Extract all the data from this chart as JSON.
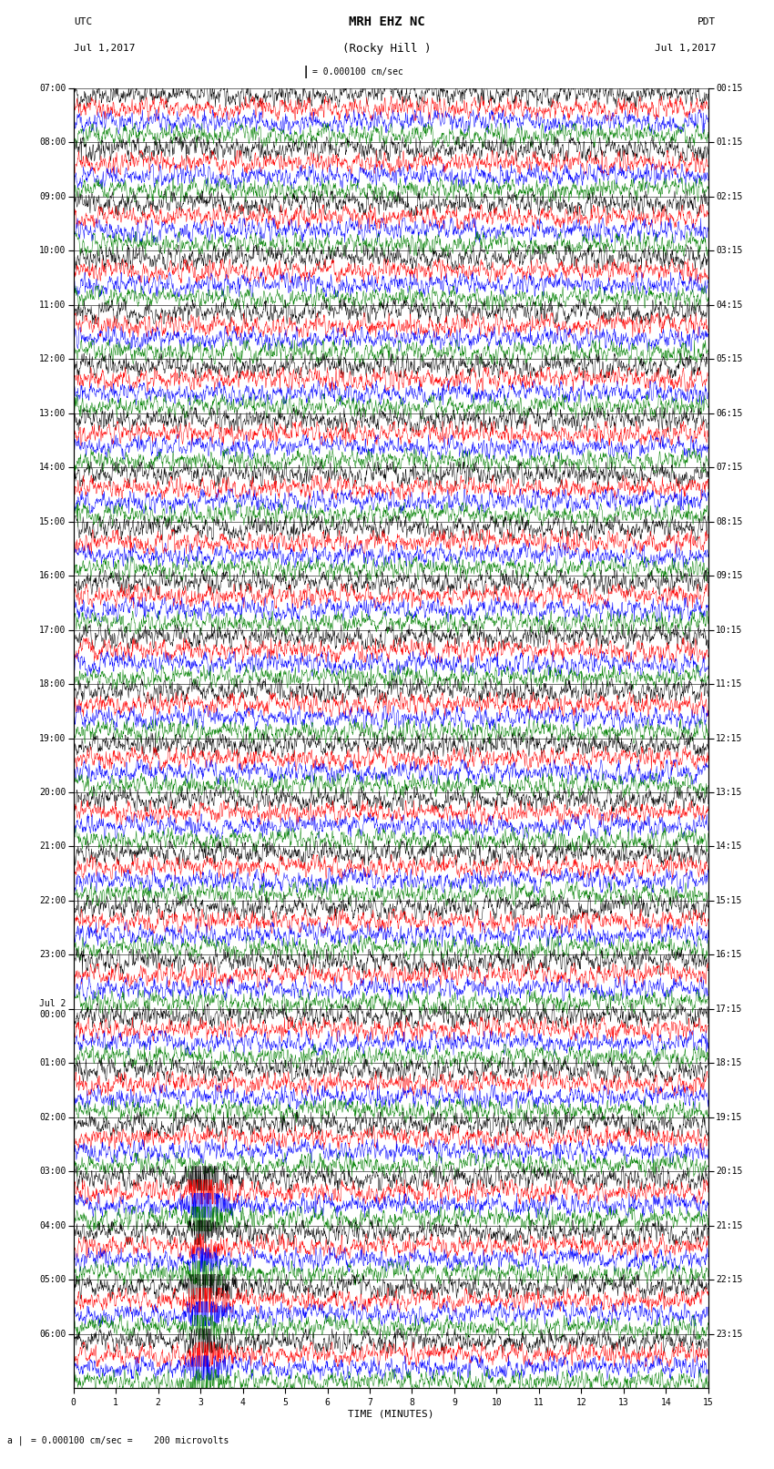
{
  "title_line1": "MRH EHZ NC",
  "title_line2": "(Rocky Hill )",
  "scale_label": "= 0.000100 cm/sec",
  "bottom_label": "= 0.000100 cm/sec =    200 microvolts",
  "xlabel": "TIME (MINUTES)",
  "left_header_line1": "UTC",
  "left_header_line2": "Jul 1,2017",
  "right_header_line1": "PDT",
  "right_header_line2": "Jul 1,2017",
  "left_times": [
    "07:00",
    "08:00",
    "09:00",
    "10:00",
    "11:00",
    "12:00",
    "13:00",
    "14:00",
    "15:00",
    "16:00",
    "17:00",
    "18:00",
    "19:00",
    "20:00",
    "21:00",
    "22:00",
    "23:00",
    "Jul 2\n00:00",
    "01:00",
    "02:00",
    "03:00",
    "04:00",
    "05:00",
    "06:00"
  ],
  "right_times": [
    "00:15",
    "01:15",
    "02:15",
    "03:15",
    "04:15",
    "05:15",
    "06:15",
    "07:15",
    "08:15",
    "09:15",
    "10:15",
    "11:15",
    "12:15",
    "13:15",
    "14:15",
    "15:15",
    "16:15",
    "17:15",
    "18:15",
    "19:15",
    "20:15",
    "21:15",
    "22:15",
    "23:15"
  ],
  "colors": [
    "black",
    "red",
    "blue",
    "green"
  ],
  "n_rows": 24,
  "traces_per_row": 4,
  "x_min": 0,
  "x_max": 15,
  "x_ticks": [
    0,
    1,
    2,
    3,
    4,
    5,
    6,
    7,
    8,
    9,
    10,
    11,
    12,
    13,
    14,
    15
  ],
  "background_color": "white",
  "fig_width": 8.5,
  "fig_height": 16.13,
  "dpi": 100
}
